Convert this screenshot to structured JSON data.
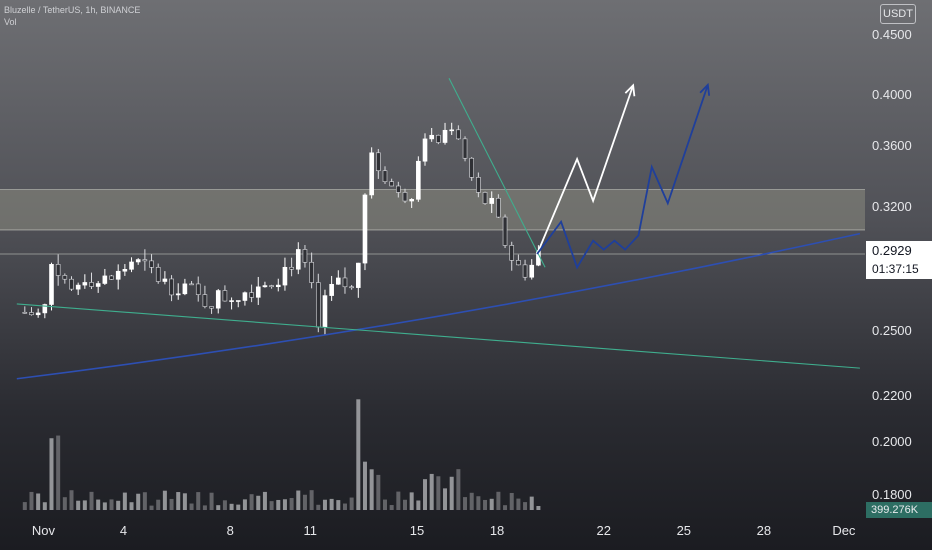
{
  "header": {
    "symbol_line": "Bluzelle / TetherUS, 1h, BINANCE",
    "volume_label": "Vol"
  },
  "currency_button": "USDT",
  "last_price": "0.2929",
  "countdown": "01:37:15",
  "volume_badge": "399.276K",
  "colors": {
    "up_candle": "#ffffff",
    "down_candle": "#2f3035",
    "blue_line": "#2d4fb3",
    "green_line": "#3fae8e",
    "arrow_white": "#ffffff",
    "arrow_blue": "#1f3f9b",
    "zone_fill": "#8a8b80"
  },
  "chart_data": {
    "type": "candlestick",
    "price_axis": {
      "min": 0.17,
      "max": 0.46,
      "ticks": [
        0.45,
        0.4,
        0.36,
        0.32,
        0.25,
        0.22,
        0.2,
        0.18
      ],
      "tick_labels": [
        "0.4500",
        "0.4000",
        "0.3600",
        "0.3200",
        "0.2500",
        "0.2200",
        "0.2000",
        "0.1800"
      ]
    },
    "time_axis": {
      "ticks": [
        "Nov",
        "4",
        "8",
        "11",
        "15",
        "18",
        "22",
        "25",
        "28",
        "Dec"
      ],
      "tick_days": [
        1,
        4,
        8,
        11,
        15,
        18,
        22,
        25,
        28,
        31
      ]
    },
    "price_path": [
      [
        0.3,
        0.26
      ],
      [
        1.0,
        0.258
      ],
      [
        1.4,
        0.294
      ],
      [
        1.9,
        0.268
      ],
      [
        2.6,
        0.282
      ],
      [
        3.1,
        0.276
      ],
      [
        3.8,
        0.281
      ],
      [
        4.3,
        0.289
      ],
      [
        5.0,
        0.283
      ],
      [
        5.6,
        0.276
      ],
      [
        6.3,
        0.275
      ],
      [
        6.9,
        0.266
      ],
      [
        7.8,
        0.269
      ],
      [
        8.4,
        0.271
      ],
      [
        9.0,
        0.276
      ],
      [
        9.8,
        0.281
      ],
      [
        10.5,
        0.292
      ],
      [
        11.0,
        0.278
      ],
      [
        11.3,
        0.25
      ],
      [
        11.7,
        0.272
      ],
      [
        12.2,
        0.276
      ],
      [
        12.7,
        0.27
      ],
      [
        12.95,
        0.32
      ],
      [
        13.3,
        0.35
      ],
      [
        13.8,
        0.34
      ],
      [
        14.3,
        0.326
      ],
      [
        14.8,
        0.33
      ],
      [
        15.2,
        0.37
      ],
      [
        15.7,
        0.36
      ],
      [
        16.1,
        0.372
      ],
      [
        16.4,
        0.378
      ],
      [
        16.8,
        0.35
      ],
      [
        17.3,
        0.326
      ],
      [
        17.8,
        0.32
      ],
      [
        18.2,
        0.303
      ],
      [
        18.7,
        0.286
      ],
      [
        19.2,
        0.283
      ],
      [
        19.5,
        0.293
      ]
    ],
    "candles_per_day": 4,
    "volume_max_k": 900,
    "horizontal_levels": [
      0.3308,
      0.3065,
      0.2929
    ],
    "resistance_zone": [
      0.3065,
      0.3308
    ],
    "lines": [
      {
        "name": "ascending-support",
        "points": [
          [
            0.0,
            0.2275
          ],
          [
            31.6,
            0.3044
          ]
        ],
        "curved": true
      },
      {
        "name": "descending-trend",
        "points": [
          [
            0.0,
            0.2647
          ],
          [
            31.6,
            0.2324
          ]
        ]
      },
      {
        "name": "short-downtrend",
        "points": [
          [
            16.2,
            0.4131
          ],
          [
            19.8,
            0.2854
          ]
        ]
      }
    ],
    "projections": [
      {
        "name": "white-arrow",
        "points": [
          [
            19.5,
            0.2929
          ],
          [
            21.0,
            0.3508
          ],
          [
            21.6,
            0.3234
          ],
          [
            23.1,
            0.4072
          ]
        ]
      },
      {
        "name": "blue-arrow",
        "points": [
          [
            19.5,
            0.2929
          ],
          [
            20.4,
            0.3111
          ],
          [
            21.0,
            0.2853
          ],
          [
            21.6,
            0.3004
          ],
          [
            22.0,
            0.2954
          ],
          [
            22.4,
            0.3004
          ],
          [
            22.8,
            0.2954
          ],
          [
            23.3,
            0.3034
          ],
          [
            23.8,
            0.3456
          ],
          [
            24.4,
            0.3218
          ],
          [
            25.9,
            0.4076
          ]
        ]
      }
    ]
  }
}
